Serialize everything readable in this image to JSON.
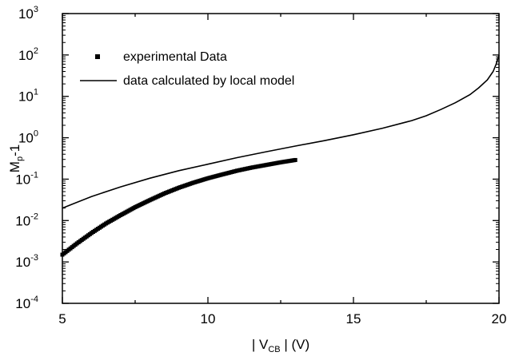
{
  "chart_data": {
    "type": "line",
    "title": "",
    "xlabel": {
      "prefix": "| V",
      "subscript": "CB",
      "suffix": " | (V)"
    },
    "ylabel": {
      "base": "M",
      "subscript": "p",
      "suffix": "-1"
    },
    "xlim": [
      5,
      20
    ],
    "ylim": [
      0.0001,
      1000
    ],
    "yscale": "log",
    "x_ticks": [
      5,
      10,
      15,
      20
    ],
    "x_tick_labels": [
      "5",
      "10",
      "15",
      "20"
    ],
    "y_ticks": [
      -4,
      -3,
      -2,
      -1,
      0,
      1,
      2,
      3
    ],
    "y_tick_labels": [
      "-4",
      "-3",
      "-2",
      "-1",
      "0",
      "1",
      "2",
      "3"
    ],
    "y_tick_base": "10",
    "grid": false,
    "legend_position": "top-left",
    "series": [
      {
        "name": "experimental Data",
        "style": "square-markers",
        "x": [
          5.0,
          5.5,
          6.0,
          6.5,
          7.0,
          7.5,
          8.0,
          8.5,
          9.0,
          9.5,
          10.0,
          10.5,
          11.0,
          11.5,
          12.0,
          12.5,
          13.0
        ],
        "y": [
          0.0015,
          0.0028,
          0.005,
          0.0085,
          0.0135,
          0.021,
          0.031,
          0.045,
          0.062,
          0.082,
          0.105,
          0.13,
          0.16,
          0.19,
          0.22,
          0.255,
          0.29
        ]
      },
      {
        "name": "data calculated by local model",
        "style": "line",
        "x": [
          5,
          6,
          7,
          8,
          9,
          10,
          11,
          12,
          13,
          14,
          15,
          16,
          17,
          17.5,
          18,
          18.5,
          19,
          19.3,
          19.6,
          19.8,
          19.9,
          20.0
        ],
        "y": [
          0.02,
          0.038,
          0.065,
          0.105,
          0.16,
          0.23,
          0.33,
          0.46,
          0.63,
          0.85,
          1.18,
          1.7,
          2.6,
          3.4,
          4.8,
          7.0,
          11,
          16,
          25,
          40,
          60,
          100
        ]
      }
    ]
  }
}
